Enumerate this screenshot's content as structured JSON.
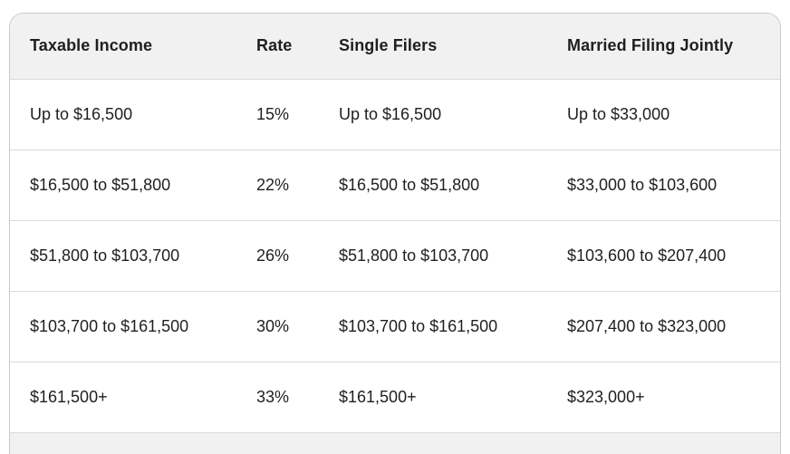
{
  "chart_data": {
    "type": "table",
    "columns": [
      "Taxable Income",
      "Rate",
      "Single Filers",
      "Married Filing Jointly"
    ],
    "rows": [
      [
        "Up to $16,500",
        "15%",
        "Up to $16,500",
        "Up to $33,000"
      ],
      [
        "$16,500 to $51,800",
        "22%",
        "$16,500 to $51,800",
        "$33,000 to $103,600"
      ],
      [
        "$51,800 to $103,700",
        "26%",
        "$51,800 to $103,700",
        "$103,600 to $207,400"
      ],
      [
        "$103,700 to $161,500",
        "30%",
        "$103,700 to $161,500",
        "$207,400 to $323,000"
      ],
      [
        "$161,500+",
        "33%",
        "$161,500+",
        "$323,000+"
      ]
    ]
  },
  "colors": {
    "page_bg": "#ffffff",
    "header_bg": "#f1f1f2",
    "row_bg": "#ffffff",
    "card_border": "#c7c9cb",
    "row_divider": "#d9d9d9",
    "text": "#1f1f1f"
  }
}
